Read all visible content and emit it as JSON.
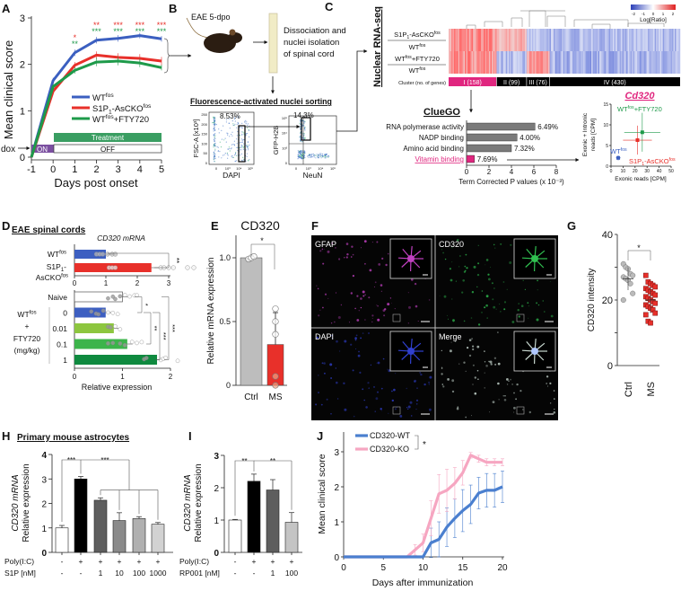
{
  "panel_labels": [
    "A",
    "B",
    "C",
    "D",
    "E",
    "F",
    "G",
    "H",
    "I",
    "J"
  ],
  "colors": {
    "wt": "#3b5fc0",
    "s1p1": "#e8302a",
    "fty": "#1e9a4a",
    "pink": "#e0267f",
    "treatment": "#3a9e62",
    "dox_on": "#7b4fa0",
    "cd320_wt": "#4a7fcf",
    "cd320_ko": "#f6a6c1"
  },
  "panelB": {
    "eae_label": "EAE 5-dpo",
    "step_lines": [
      "Dissociation and",
      "nuclei isolation",
      "of spinal cord"
    ],
    "sorting_title": "Fluorescence-activated nuclei sorting",
    "plot1": {
      "ylabel": "FSC-A [x10³]",
      "xlabel": "DAPI",
      "gate": "8.53%",
      "yticks": [
        "250",
        "200",
        "150",
        "100",
        "50",
        "0"
      ],
      "xticks": [
        "0",
        "10³",
        "10⁴",
        "10⁵"
      ]
    },
    "plot2": {
      "ylabel": "GFP-H2B",
      "xlabel": "NeuN",
      "gate": "14.3%",
      "yticks": [
        "10⁵",
        "10⁴",
        "10³",
        "0"
      ],
      "xticks": [
        "0",
        "10³",
        "10⁴",
        "10⁵"
      ]
    }
  },
  "panelC": {
    "title": "Nuclear RNA-seq",
    "colorbar": {
      "ticks": [
        "-2",
        "-1",
        "0",
        "1",
        "2"
      ],
      "label": "Log[Ratio]"
    },
    "row1": {
      "num": [
        [
          "S1P"
        ],
        [
          "1",
          "sub"
        ],
        [
          "-AsCKO"
        ],
        [
          "fos",
          "sup"
        ]
      ],
      "den": [
        [
          "WT"
        ],
        [
          "fos",
          "sup"
        ]
      ]
    },
    "row2": {
      "num": [
        [
          "WT"
        ],
        [
          "fos",
          "sup"
        ],
        [
          "+FTY720"
        ]
      ],
      "den": [
        [
          "WT"
        ],
        [
          "fos",
          "sup"
        ]
      ]
    },
    "cluster_label": "Cluster (no. of genes)",
    "clusters": [
      {
        "label": "I (158)",
        "n": 158,
        "color": "#e0267f",
        "row1": 1,
        "row2": 1
      },
      {
        "label": "II (99)",
        "n": 99,
        "color": "#000000",
        "row1": 0.6,
        "row2": -0.6
      },
      {
        "label": "III (76)",
        "n": 76,
        "color": "#000000",
        "row1": -0.5,
        "row2": 0.8
      },
      {
        "label": "IV (430)",
        "n": 430,
        "color": "#000000",
        "row1": -0.6,
        "row2": -0.7
      }
    ],
    "cluego_title": "ClueGO"
  },
  "panelD": {
    "title": "EAE spinal cords",
    "subtitle": "CD320 mRNA",
    "group_label": [
      [
        [
          "WT"
        ],
        [
          "fos",
          "sup"
        ]
      ],
      [
        [
          "+"
        ]
      ],
      [
        [
          "FTY720"
        ]
      ],
      [
        [
          "(mg/kg)"
        ]
      ]
    ],
    "top_labels": [
      [
        [
          "WT"
        ],
        [
          "fos",
          "sup"
        ]
      ],
      [
        [
          "S1P"
        ],
        [
          "1",
          "sub"
        ],
        [
          "-"
        ]
      ],
      [
        [
          "AsCKO"
        ],
        [
          "fos",
          "sup"
        ]
      ]
    ]
  },
  "panelF": {
    "channels": [
      "GFAP",
      "CD320",
      "DAPI",
      "Merge"
    ]
  },
  "chart_data": [
    {
      "id": "A",
      "type": "line",
      "xlabel": "Days post onset",
      "ylabel": "Mean clinical score",
      "xlim": [
        -1,
        5
      ],
      "ylim": [
        0,
        3
      ],
      "xticks": [
        "-1",
        "0",
        "1",
        "2",
        "3",
        "4",
        "5"
      ],
      "yticks": [
        "0",
        "1",
        "2",
        "3"
      ],
      "x": [
        -1,
        0,
        1,
        2,
        3,
        4,
        5
      ],
      "series": [
        {
          "name": [
            [
              "WT"
            ],
            [
              "fos",
              "sup"
            ]
          ],
          "color": "#3b5fc0",
          "values": [
            0,
            1.65,
            2.25,
            2.52,
            2.56,
            2.62,
            2.55
          ],
          "err": [
            0,
            0.06,
            0.07,
            0.07,
            0.07,
            0.06,
            0.06
          ]
        },
        {
          "name": [
            [
              "S1P"
            ],
            [
              "1",
              "sub"
            ],
            [
              "-AsCKO"
            ],
            [
              "fos",
              "sup"
            ]
          ],
          "color": "#e8302a",
          "values": [
            0,
            1.42,
            1.98,
            2.2,
            2.15,
            2.13,
            2.07
          ],
          "err": [
            0,
            0.05,
            0.07,
            0.08,
            0.09,
            0.09,
            0.09
          ]
        },
        {
          "name": [
            [
              "WT"
            ],
            [
              "fos",
              "sup"
            ],
            [
              "+FTY720"
            ]
          ],
          "color": "#1e9a4a",
          "values": [
            0,
            1.52,
            1.87,
            2.05,
            2.07,
            2.03,
            1.93
          ],
          "err": [
            0,
            0.05,
            0.07,
            0.09,
            0.09,
            0.09,
            0.06
          ]
        }
      ],
      "sig_red": [
        "",
        "",
        "*",
        "**",
        "***",
        "***",
        "***"
      ],
      "sig_green": [
        "",
        "",
        "**",
        "***",
        "***",
        "***",
        "***"
      ],
      "dox_label": "dox",
      "dox_on": "ON",
      "dox_off": "OFF",
      "treatment": "Treatment"
    },
    {
      "id": "C-cluego",
      "type": "bar",
      "orientation": "horizontal",
      "title": "ClueGO",
      "xlabel": "Term Corrected P values (x 10⁻³)",
      "xlim": [
        0,
        8
      ],
      "xticks": [
        "0",
        "2",
        "4",
        "6",
        "8"
      ],
      "categories": [
        "RNA polymerase activity",
        "NADP binding",
        "Amino acid binding",
        "Vitamin binding"
      ],
      "values": [
        6.1,
        4.5,
        4.0,
        0.7
      ],
      "labels": [
        "6.49%",
        "4.00%",
        "7.32%",
        "7.69%"
      ],
      "colors": [
        "#7a7a7a",
        "#7a7a7a",
        "#7a7a7a",
        "#e0267f"
      ]
    },
    {
      "id": "C-cd320",
      "type": "scatter",
      "title": "Cd320",
      "xlabel": "Exonic reads [CPM]",
      "ylabel": [
        "Exonic + Intronic",
        "reads [CPM]"
      ],
      "xlim": [
        0,
        50
      ],
      "ylim": [
        0,
        15
      ],
      "xticks": [
        "0",
        "10",
        "20",
        "30",
        "40",
        "50"
      ],
      "yticks": [
        "0",
        "5",
        "10",
        "15"
      ],
      "points": [
        {
          "name": [
            [
              "WT"
            ],
            [
              "fos",
              "sup"
            ]
          ],
          "x": 6,
          "y": 2,
          "xerr": 2,
          "yerr": 0.6,
          "color": "#3b5fc0"
        },
        {
          "name": [
            [
              "S1P"
            ],
            [
              "1",
              "sub"
            ],
            [
              "-AsCKO"
            ],
            [
              "fos",
              "sup"
            ]
          ],
          "x": 22,
          "y": 6.3,
          "xerr": 12,
          "yerr": 3.5,
          "color": "#e8302a"
        },
        {
          "name": [
            [
              "WT"
            ],
            [
              "fos",
              "sup"
            ],
            [
              "+FTY720"
            ]
          ],
          "x": 26,
          "y": 8.2,
          "xerr": 15,
          "yerr": 4.7,
          "color": "#1e9a4a"
        }
      ]
    },
    {
      "id": "D-top",
      "type": "bar",
      "orientation": "horizontal",
      "xlim": [
        0,
        3
      ],
      "xticks": [
        "0",
        "1",
        "2",
        "3"
      ],
      "categories": [
        "WTfos",
        "S1P1-AsCKOfos"
      ],
      "values": [
        1.0,
        2.45
      ],
      "colors": [
        "#3d5fc1",
        "#e8302a"
      ],
      "points": [
        [
          0.7,
          0.8,
          0.9,
          1.05,
          1.2,
          1.3
        ],
        [
          1.1,
          1.2,
          1.3,
          2.75,
          2.85,
          3.0,
          3.15,
          3.6,
          3.8
        ]
      ],
      "sig": "**"
    },
    {
      "id": "D-bottom",
      "type": "bar",
      "orientation": "horizontal",
      "xlabel": "Relative expression",
      "xlim": [
        0,
        2
      ],
      "xticks": [
        "0",
        "1",
        "2"
      ],
      "categories": [
        "Naive",
        "0",
        "0.01",
        "0.1",
        "1"
      ],
      "values": [
        1.0,
        0.65,
        0.82,
        1.1,
        1.72
      ],
      "colors": [
        "#ffffff",
        "#3d5fc1",
        "#8dc63f",
        "#3cb44b",
        "#0f8a3f"
      ],
      "points": [
        [
          0.7,
          0.8,
          0.85,
          0.95,
          1.05,
          1.15,
          1.25,
          1.3
        ],
        [
          0.35,
          0.45,
          0.5,
          0.6,
          0.7,
          0.8,
          0.9
        ],
        [
          0.7,
          0.75,
          0.85,
          0.95
        ],
        [
          0.7,
          0.8,
          0.95,
          1.05,
          1.2,
          1.3,
          1.4
        ],
        [
          1.45,
          1.5,
          1.8,
          1.85,
          1.9,
          2.15
        ]
      ],
      "sig": [
        "*",
        "**",
        "***",
        "***"
      ]
    },
    {
      "id": "E",
      "type": "bar",
      "title": "CD320",
      "ylabel": "Relative mRNA expression",
      "ylim": [
        0,
        1.1
      ],
      "yticks": [
        "0",
        "0.5",
        "1.0"
      ],
      "categories": [
        "Ctrl",
        "MS"
      ],
      "values": [
        1.0,
        0.32
      ],
      "err": [
        0.01,
        0.25
      ],
      "colors": [
        "#bdbdbd",
        "#e8302a"
      ],
      "points": [
        [
          0.99,
          1.0,
          1.01
        ],
        [
          0.6,
          0.5,
          0.4,
          0.07,
          0.0
        ]
      ],
      "sig": "*"
    },
    {
      "id": "G",
      "type": "scatter",
      "ylabel": "CD320 intensity",
      "ylim": [
        0,
        40
      ],
      "yticks": [
        "0",
        "20",
        "40"
      ],
      "categories": [
        "Ctrl",
        "MS"
      ],
      "means": [
        26.5,
        20
      ],
      "sd": [
        3.5,
        4
      ],
      "points": [
        [
          31,
          30,
          29.5,
          28,
          27.5,
          27,
          26.5,
          26,
          25,
          22,
          20
        ],
        [
          27.5,
          25.5,
          25,
          24.5,
          24,
          23.5,
          23,
          22.5,
          22,
          21.5,
          21,
          20.5,
          20,
          19.5,
          19,
          18.5,
          18,
          17.5,
          17,
          16,
          15.5,
          13.5,
          13
        ]
      ],
      "sig": "*"
    },
    {
      "id": "H",
      "type": "bar",
      "title": "Primary mouse astrocytes",
      "ylabel": [
        "CD320 mRNA",
        "Relative expression"
      ],
      "ylim": [
        0,
        4
      ],
      "yticks": [
        "0",
        "1",
        "2",
        "3",
        "4"
      ],
      "row_labels": [
        "Poly(I:C)",
        "S1P [nM]"
      ],
      "rows": [
        [
          "-",
          "+",
          "+",
          "+",
          "+",
          "+"
        ],
        [
          "-",
          "-",
          "1",
          "10",
          "100",
          "1000"
        ]
      ],
      "values": [
        1.0,
        3.0,
        2.13,
        1.3,
        1.38,
        1.15
      ],
      "err": [
        0.1,
        0.1,
        0.1,
        0.32,
        0.08,
        0.07
      ],
      "colors": [
        "#ffffff",
        "#000000",
        "#5e5e5e",
        "#8a8a8a",
        "#b0b0b0",
        "#d2d2d2"
      ],
      "sig": [
        "***",
        "***"
      ]
    },
    {
      "id": "I",
      "type": "bar",
      "ylabel": [
        "CD320 mRNA",
        "Relative expression"
      ],
      "ylim": [
        0,
        3
      ],
      "yticks": [
        "0",
        "1",
        "2",
        "3"
      ],
      "row_labels": [
        "Poly(I:C)",
        "RP001 [nM]"
      ],
      "rows": [
        [
          "-",
          "+",
          "+",
          "+"
        ],
        [
          "-",
          "-",
          "1",
          "100"
        ]
      ],
      "values": [
        1.0,
        2.2,
        1.93,
        0.93
      ],
      "err": [
        0.02,
        0.22,
        0.32,
        0.3
      ],
      "colors": [
        "#ffffff",
        "#000000",
        "#5e5e5e",
        "#c4c4c4"
      ],
      "sig": [
        "**",
        "**"
      ]
    },
    {
      "id": "J",
      "type": "line",
      "xlabel": "Days after immunization",
      "ylabel": "Mean clinical score",
      "xlim": [
        0,
        20
      ],
      "ylim": [
        0,
        3
      ],
      "xticks": [
        "0",
        "5",
        "10",
        "15",
        "20"
      ],
      "yticks": [
        "0",
        "1",
        "2",
        "3"
      ],
      "x": [
        0,
        1,
        2,
        3,
        4,
        5,
        6,
        7,
        8,
        9,
        10,
        11,
        12,
        13,
        14,
        15,
        16,
        17,
        18,
        19,
        20
      ],
      "series": [
        {
          "name": "CD320-WT",
          "color": "#4a7fcf",
          "values": [
            0,
            0,
            0,
            0,
            0,
            0,
            0,
            0,
            0,
            0,
            0,
            0.4,
            0.5,
            0.85,
            1.1,
            1.32,
            1.5,
            1.82,
            1.9,
            1.9,
            2.0
          ],
          "err": [
            0,
            0,
            0,
            0,
            0,
            0,
            0,
            0,
            0,
            0,
            0,
            0.42,
            0.5,
            0.55,
            0.55,
            0.6,
            0.55,
            0.45,
            0.48,
            0.48,
            0.45
          ]
        },
        {
          "name": "CD320-KO",
          "color": "#f6a6c1",
          "values": [
            0,
            0,
            0,
            0,
            0,
            0,
            0,
            0,
            0,
            0.2,
            0.4,
            1.1,
            1.8,
            1.9,
            2.1,
            2.4,
            2.9,
            2.8,
            2.7,
            2.7,
            2.7
          ],
          "err": [
            0,
            0,
            0,
            0,
            0,
            0,
            0,
            0,
            0,
            0.15,
            0.25,
            0.5,
            0.55,
            0.6,
            0.45,
            0.35,
            0.08,
            0.1,
            0.1,
            0.1,
            0.1
          ]
        }
      ],
      "sig": "*"
    }
  ]
}
